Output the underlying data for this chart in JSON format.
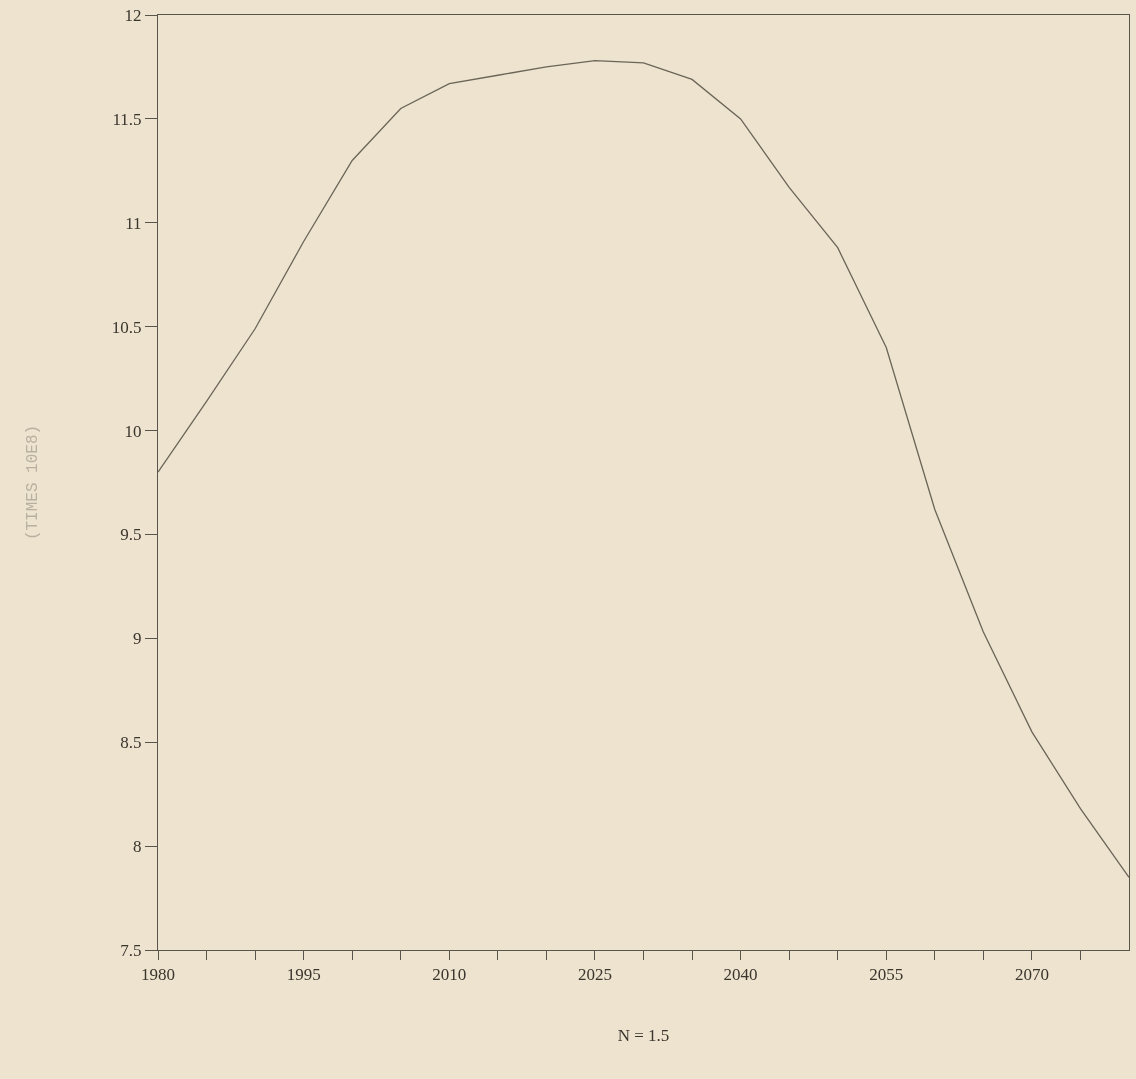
{
  "chart_data": {
    "type": "line",
    "xlabel": "N = 1.5",
    "ylabel": "(TIMES 10E8)",
    "x": [
      1980,
      1985,
      1990,
      1995,
      2000,
      2005,
      2010,
      2015,
      2020,
      2025,
      2030,
      2035,
      2040,
      2045,
      2050,
      2055,
      2060,
      2065,
      2070,
      2075,
      2080
    ],
    "series": [
      {
        "color": "#6b6558",
        "values": [
          9.8,
          10.14,
          10.49,
          10.91,
          11.3,
          11.55,
          11.67,
          11.71,
          11.75,
          11.78,
          11.77,
          11.69,
          11.5,
          11.17,
          10.88,
          10.4,
          9.62,
          9.03,
          8.55,
          8.18,
          7.85
        ]
      }
    ],
    "xlim": [
      1980,
      2080
    ],
    "ylim": [
      7.5,
      12
    ],
    "xticks": [
      1980,
      {
        "value": 1985,
        "label": null
      },
      {
        "value": 1990,
        "label": null
      },
      1995,
      {
        "value": 2000,
        "label": null
      },
      {
        "value": 2005,
        "label": null
      },
      2010,
      {
        "value": 2015,
        "label": null
      },
      {
        "value": 2020,
        "label": null
      },
      2025,
      {
        "value": 2030,
        "label": null
      },
      {
        "value": 2035,
        "label": null
      },
      2040,
      {
        "value": 2045,
        "label": null
      },
      {
        "value": 2050,
        "label": null
      },
      2055,
      {
        "value": 2060,
        "label": null
      },
      {
        "value": 2065,
        "label": null
      },
      2070,
      {
        "value": 2075,
        "label": null
      }
    ],
    "yticks": [
      7.5,
      8,
      8.5,
      9,
      9.5,
      10,
      10.5,
      11,
      11.5,
      12
    ],
    "grid": false,
    "marker": "none",
    "line_style": "solid"
  }
}
